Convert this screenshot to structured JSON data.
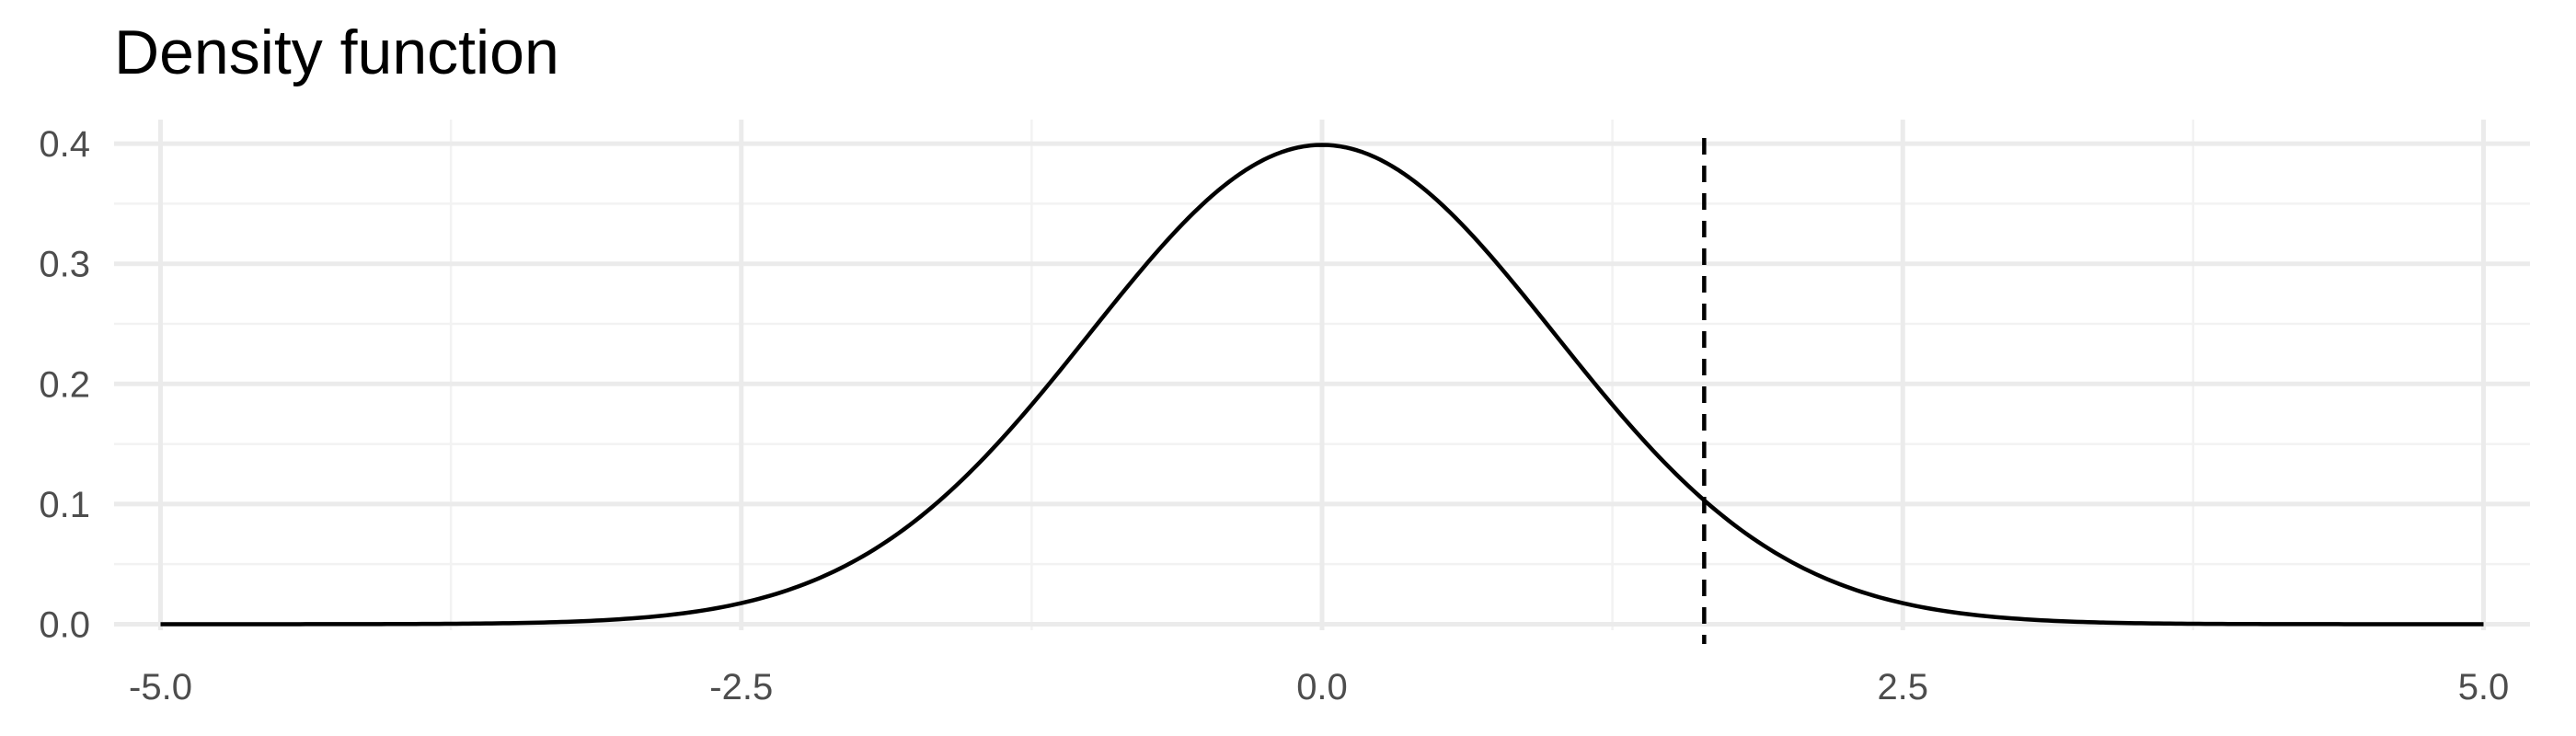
{
  "chart_data": {
    "type": "line",
    "title": "Density function",
    "xlabel": "",
    "ylabel": "",
    "xlim": [
      -5.2,
      5.2
    ],
    "ylim": [
      -0.005,
      0.42
    ],
    "x_ticks": [
      -5.0,
      -2.5,
      0.0,
      2.5,
      5.0
    ],
    "x_tick_labels": [
      "-5.0",
      "-2.5",
      "0.0",
      "2.5",
      "5.0"
    ],
    "y_ticks": [
      0.0,
      0.1,
      0.2,
      0.3,
      0.4
    ],
    "y_tick_labels": [
      "0.0",
      "0.1",
      "0.2",
      "0.3",
      "0.4"
    ],
    "grid": true,
    "series": [
      {
        "x": [
          -5.0,
          -4.5,
          -4.0,
          -3.5,
          -3.0,
          -2.75,
          -2.5,
          -2.25,
          -2.0,
          -1.75,
          -1.5,
          -1.25,
          -1.0,
          -0.75,
          -0.5,
          -0.25,
          0.0,
          0.25,
          0.5,
          0.75,
          1.0,
          1.25,
          1.5,
          1.75,
          2.0,
          2.25,
          2.5,
          2.75,
          3.0,
          3.5,
          4.0,
          4.5,
          5.0
        ],
        "y": [
          0.0,
          0.0,
          0.0001,
          0.0009,
          0.0044,
          0.0091,
          0.0175,
          0.0317,
          0.054,
          0.0863,
          0.1295,
          0.1826,
          0.242,
          0.3011,
          0.3521,
          0.3867,
          0.3989,
          0.3867,
          0.3521,
          0.3011,
          0.242,
          0.1826,
          0.1295,
          0.0863,
          0.054,
          0.0317,
          0.0175,
          0.0091,
          0.0044,
          0.0009,
          0.0001,
          0.0,
          0.0
        ],
        "color": "#000000"
      }
    ],
    "vline": {
      "x": 1.645,
      "style": "dashed",
      "color": "#000000"
    }
  },
  "colors": {
    "grid_major": "#ebebeb",
    "grid_minor": "#f2f2f2",
    "background": "#ffffff"
  }
}
